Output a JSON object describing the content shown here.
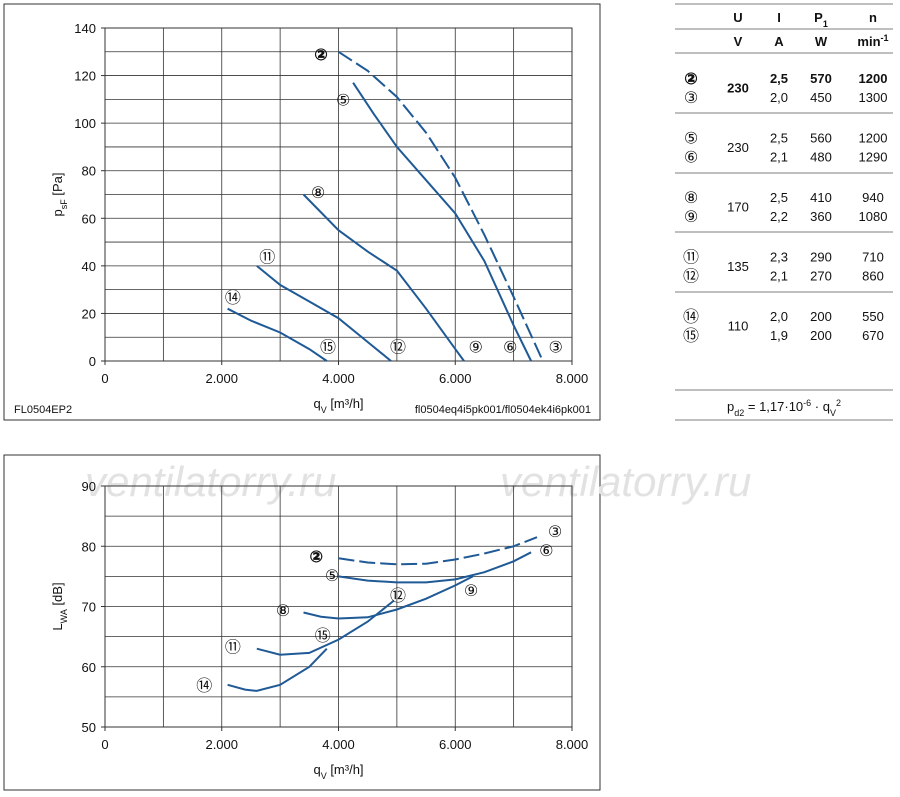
{
  "chart_data": [
    {
      "type": "line",
      "ylabel": {
        "symbol": "p",
        "sub": "sF",
        "unit": " [Pa]"
      },
      "xlabel": {
        "symbol": "q",
        "sub": "V",
        "unit": " [m³/h]"
      },
      "xlim": [
        0,
        8000
      ],
      "ylim": [
        0,
        140
      ],
      "xticks": [
        0,
        {
          "value": 2000,
          "label": "2.000"
        },
        {
          "value": 4000,
          "label": "4.000"
        },
        {
          "value": 6000,
          "label": "6.000"
        },
        {
          "value": 8000,
          "label": "8.000"
        }
      ],
      "yticks": [
        0,
        20,
        40,
        60,
        80,
        100,
        120,
        140
      ],
      "xgrid": [
        1000,
        2000,
        3000,
        4000,
        5000,
        6000,
        7000
      ],
      "ygrid": [
        10,
        20,
        30,
        40,
        50,
        60,
        70,
        80,
        90,
        100,
        110,
        120,
        130
      ],
      "footnote_left": "FL0504EP2",
      "footnote_right": "fl0504eq4i5pk001/fl0504ek4i6pk001",
      "series": [
        {
          "color": "#1f5a96",
          "dashed": true,
          "x": [
            4000,
            4500,
            5000,
            5500,
            6000,
            6500,
            7000,
            7500
          ],
          "y": [
            130,
            122,
            111,
            96,
            77,
            53,
            27,
            0
          ],
          "labels": [
            {
              "text": "②",
              "bold": true,
              "x": 3700,
              "y": 129
            },
            {
              "text": "③",
              "x": 7720,
              "y": 6
            }
          ]
        },
        {
          "color": "#1f5a96",
          "x": [
            4250,
            4600,
            5000,
            5500,
            6000,
            6500,
            7000,
            7300
          ],
          "y": [
            117,
            104,
            90,
            76,
            62,
            42,
            15,
            0
          ],
          "labels": [
            {
              "text": "⑤",
              "x": 4080,
              "y": 110
            },
            {
              "text": "⑥",
              "x": 6940,
              "y": 6
            }
          ]
        },
        {
          "color": "#1f5a96",
          "x": [
            3400,
            4000,
            4500,
            5000,
            5500,
            6000,
            6150
          ],
          "y": [
            70,
            55,
            46,
            38,
            22,
            5,
            0
          ],
          "labels": [
            {
              "text": "⑧",
              "x": 3650,
              "y": 71
            },
            {
              "text": "⑨",
              "x": 6350,
              "y": 6
            }
          ]
        },
        {
          "color": "#1f5a96",
          "x": [
            2600,
            3000,
            3500,
            4000,
            4500,
            4900
          ],
          "y": [
            40,
            32,
            25,
            18,
            8,
            0
          ],
          "labels": [
            {
              "text": "⑪",
              "x": 2780,
              "y": 44
            },
            {
              "text": "⑫",
              "x": 5020,
              "y": 6
            }
          ]
        },
        {
          "color": "#1f5a96",
          "x": [
            2100,
            2500,
            3000,
            3500,
            3800
          ],
          "y": [
            22,
            17,
            12,
            5,
            0
          ],
          "labels": [
            {
              "text": "⑭",
              "x": 2190,
              "y": 27
            },
            {
              "text": "⑮",
              "x": 3820,
              "y": 6
            }
          ]
        }
      ]
    },
    {
      "type": "line",
      "watermark": "ventilatorry.ru",
      "ylabel": {
        "symbol": "L",
        "sub": "WA",
        "unit": " [dB]"
      },
      "xlabel": {
        "symbol": "q",
        "sub": "V",
        "unit": " [m³/h]"
      },
      "xlim": [
        0,
        8000
      ],
      "ylim": [
        50,
        90
      ],
      "xticks": [
        0,
        {
          "value": 2000,
          "label": "2.000"
        },
        {
          "value": 4000,
          "label": "4.000"
        },
        {
          "value": 6000,
          "label": "6.000"
        },
        {
          "value": 8000,
          "label": "8.000"
        }
      ],
      "yticks": [
        50,
        60,
        70,
        80,
        90
      ],
      "xgrid": [
        1000,
        2000,
        3000,
        4000,
        5000,
        6000,
        7000
      ],
      "ygrid": [
        55,
        60,
        65,
        70,
        75,
        80,
        85
      ],
      "series": [
        {
          "color": "#1f5a96",
          "dashed": true,
          "x": [
            4000,
            4500,
            5000,
            5500,
            6000,
            6500,
            7000,
            7400
          ],
          "y": [
            78,
            77.3,
            77,
            77.1,
            77.8,
            78.8,
            80,
            81.5
          ],
          "labels": [
            {
              "text": "②",
              "bold": true,
              "x": 3620,
              "y": 78.4
            },
            {
              "text": "③",
              "x": 7710,
              "y": 82.5
            }
          ]
        },
        {
          "color": "#1f5a96",
          "x": [
            4000,
            4500,
            5000,
            5500,
            6000,
            6500,
            7000,
            7300
          ],
          "y": [
            75,
            74.3,
            74,
            74,
            74.5,
            75.7,
            77.5,
            79
          ],
          "labels": [
            {
              "text": "⑤",
              "x": 3890,
              "y": 75.2
            },
            {
              "text": "⑥",
              "x": 7560,
              "y": 79.4
            }
          ]
        },
        {
          "color": "#1f5a96",
          "x": [
            3400,
            3700,
            4000,
            4500,
            5000,
            5500,
            6000,
            6300
          ],
          "y": [
            69,
            68.3,
            68,
            68.2,
            69.5,
            71.3,
            73.5,
            75
          ],
          "labels": [
            {
              "text": "⑧",
              "x": 3050,
              "y": 69.4
            },
            {
              "text": "⑨",
              "x": 6270,
              "y": 72.7
            }
          ]
        },
        {
          "color": "#1f5a96",
          "x": [
            2600,
            3000,
            3500,
            4000,
            4500,
            4950
          ],
          "y": [
            63,
            62,
            62.3,
            64.5,
            67.5,
            71
          ],
          "labels": [
            {
              "text": "⑪",
              "x": 2190,
              "y": 63.4
            },
            {
              "text": "⑫",
              "x": 5020,
              "y": 71.9
            }
          ]
        },
        {
          "color": "#1f5a96",
          "x": [
            2100,
            2400,
            2600,
            3000,
            3500,
            3800
          ],
          "y": [
            57,
            56.2,
            56,
            57,
            60,
            63
          ],
          "labels": [
            {
              "text": "⑭",
              "x": 1700,
              "y": 57
            },
            {
              "text": "⑮",
              "x": 3730,
              "y": 65.3
            }
          ]
        }
      ]
    }
  ],
  "table": {
    "header": [
      {
        "U": "U",
        "I": "I",
        "P": "P",
        "P_sub": "1",
        "n": "n"
      },
      {
        "U": "V",
        "I": "A",
        "P": "W",
        "n": "min",
        "n_sup": "-1"
      }
    ],
    "groups": [
      {
        "rows": [
          {
            "id": "②",
            "bold": true,
            "U": "230",
            "I": "2,5",
            "P": "570",
            "n": "1200"
          },
          {
            "id": "③",
            "I": "2,0",
            "P": "450",
            "n": "1300"
          }
        ]
      },
      {
        "rows": [
          {
            "id": "⑤",
            "U": "230",
            "I": "2,5",
            "P": "560",
            "n": "1200"
          },
          {
            "id": "⑥",
            "I": "2,1",
            "P": "480",
            "n": "1290"
          }
        ]
      },
      {
        "rows": [
          {
            "id": "⑧",
            "U": "170",
            "I": "2,5",
            "P": "410",
            "n": "940"
          },
          {
            "id": "⑨",
            "I": "2,2",
            "P": "360",
            "n": "1080"
          }
        ]
      },
      {
        "rows": [
          {
            "id": "⑪",
            "U": "135",
            "I": "2,3",
            "P": "290",
            "n": "710"
          },
          {
            "id": "⑫",
            "I": "2,1",
            "P": "270",
            "n": "860"
          }
        ]
      },
      {
        "rows": [
          {
            "id": "⑭",
            "U": "110",
            "I": "2,0",
            "P": "200",
            "n": "550"
          },
          {
            "id": "⑮",
            "I": "1,9",
            "P": "200",
            "n": "670"
          }
        ]
      }
    ],
    "formula": {
      "a": "p",
      "a_sub": "d2",
      "b": " = 1,17·10",
      "b_sup": "-6",
      "c": " · q",
      "c_sub": "V",
      "c_sup": "2"
    }
  }
}
